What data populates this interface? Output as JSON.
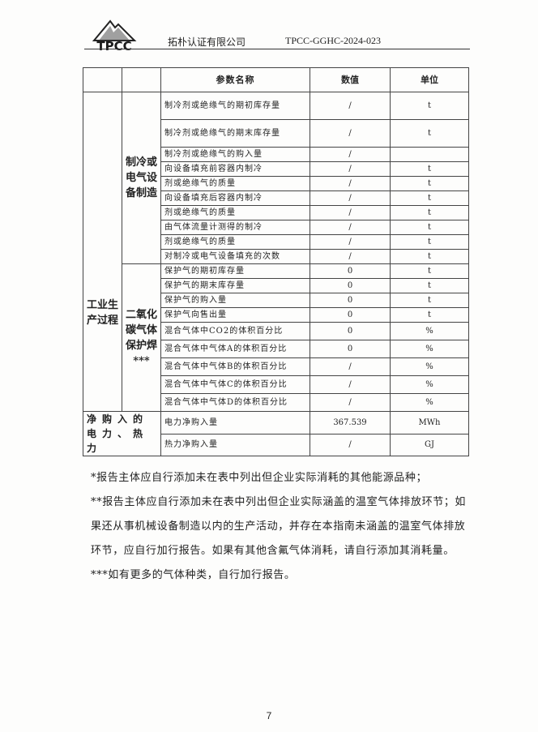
{
  "header": {
    "logo_text": "TPCC",
    "company": "拓朴认证有限公司",
    "doc_no": "TPCC-GGHC-2024-023"
  },
  "table": {
    "columns": [
      "参数名称",
      "数值",
      "单位"
    ],
    "category1": "工业生产过程",
    "group1": {
      "label": "制冷或电气设备制造",
      "rows": [
        {
          "name": "制冷剂或绝缘气的期初库存量",
          "value": "/",
          "unit": "t"
        },
        {
          "name": "制冷剂或绝缘气的期末库存量",
          "value": "/",
          "unit": "t"
        },
        {
          "name": "制冷剂或绝缘气的购入量",
          "value": "/",
          "unit": ""
        },
        {
          "name": "向设备填充前容器内制冷",
          "value": "/",
          "unit": "t"
        },
        {
          "name": "剂或绝缘气的质量",
          "value": "/",
          "unit": "t"
        },
        {
          "name": "向设备填充后容器内制冷",
          "value": "/",
          "unit": "t"
        },
        {
          "name": "剂或绝缘气的质量",
          "value": "/",
          "unit": "t"
        },
        {
          "name": "由气体流量计测得的制冷",
          "value": "/",
          "unit": "t"
        },
        {
          "name": "剂或绝缘气的质量",
          "value": "/",
          "unit": "t"
        },
        {
          "name": "对制冷或电气设备填充的次数",
          "value": "/",
          "unit": "t"
        }
      ]
    },
    "group2": {
      "label": "二氧化碳气体保护焊",
      "mark": "***",
      "rows": [
        {
          "name": "保护气的期初库存量",
          "value": "0",
          "unit": "t"
        },
        {
          "name": "保护气的期末库存量",
          "value": "0",
          "unit": "t"
        },
        {
          "name": "保护气的购入量",
          "value": "0",
          "unit": "t"
        },
        {
          "name": "保护气向售出量",
          "value": "0",
          "unit": "t"
        },
        {
          "name": "混合气体中CO2的体积百分比",
          "value": "0",
          "unit": "%"
        },
        {
          "name": "混合气体中气体A的体积百分比",
          "value": "0",
          "unit": "%"
        },
        {
          "name": "混合气体中气体B的体积百分比",
          "value": "/",
          "unit": "%"
        },
        {
          "name": "混合气体中气体C的体积百分比",
          "value": "/",
          "unit": "%"
        },
        {
          "name": "混合气体中气体D的体积百分比",
          "value": "/",
          "unit": "%"
        }
      ]
    },
    "category2": {
      "label": "净购入的电力、热力",
      "rows": [
        {
          "name": "电力净购入量",
          "value": "367.539",
          "unit": "MWh"
        },
        {
          "name": "热力净购入量",
          "value": "/",
          "unit": "GJ"
        }
      ]
    }
  },
  "notes": [
    "*报告主体应自行添加未在表中列出但企业实际消耗的其他能源品种；",
    "**报告主体应自行添加未在表中列出但企业实际涵盖的温室气体排放环节；如果还从事机械设备制造以内的生产活动，并存在本指南未涵盖的温室气体排放环节，应自行加行报告。如果有其他含氟气体消耗，请自行添加其消耗量。",
    "***如有更多的气体种类，自行加行报告。"
  ],
  "page_number": "7"
}
